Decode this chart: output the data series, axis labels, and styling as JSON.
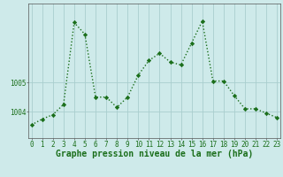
{
  "x": [
    0,
    1,
    2,
    3,
    4,
    5,
    6,
    7,
    8,
    9,
    10,
    11,
    12,
    13,
    14,
    15,
    16,
    17,
    18,
    19,
    20,
    21,
    22,
    23
  ],
  "y": [
    1003.55,
    1003.75,
    1003.9,
    1004.25,
    1007.05,
    1006.65,
    1004.5,
    1004.5,
    1004.15,
    1004.5,
    1005.25,
    1005.75,
    1006.0,
    1005.7,
    1005.6,
    1006.35,
    1007.1,
    1005.05,
    1005.05,
    1004.55,
    1004.1,
    1004.1,
    1003.95,
    1003.8
  ],
  "line_color": "#1a6e1a",
  "marker": "D",
  "marker_size": 2.2,
  "line_width": 1.0,
  "xlabel": "Graphe pression niveau de la mer (hPa)",
  "xlabel_fontsize": 7.0,
  "xlabel_color": "#1a6e1a",
  "xlabel_bold": true,
  "ytick_labels": [
    "1004",
    "1005"
  ],
  "ytick_values": [
    1004,
    1005
  ],
  "ylim": [
    1003.1,
    1007.7
  ],
  "xlim": [
    -0.3,
    23.3
  ],
  "background_color": "#ceeaea",
  "grid_color": "#aacece",
  "axis_color": "#555555",
  "tick_fontsize": 5.5,
  "tick_color": "#1a6e1a",
  "figwidth": 3.2,
  "figheight": 2.0,
  "dpi": 100
}
